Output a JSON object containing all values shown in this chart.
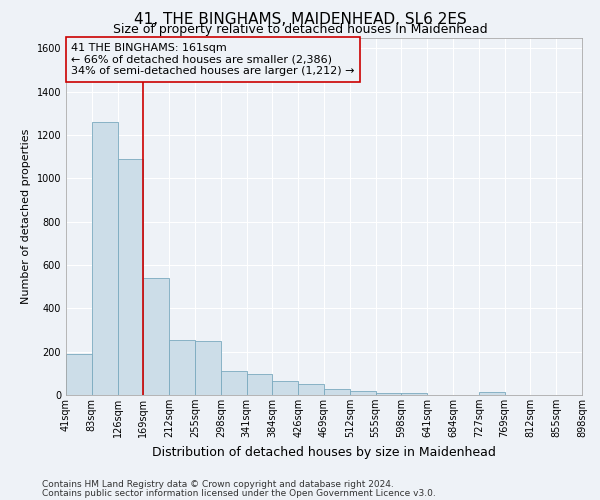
{
  "title": "41, THE BINGHAMS, MAIDENHEAD, SL6 2ES",
  "subtitle": "Size of property relative to detached houses in Maidenhead",
  "xlabel": "Distribution of detached houses by size in Maidenhead",
  "ylabel": "Number of detached properties",
  "footnote1": "Contains HM Land Registry data © Crown copyright and database right 2024.",
  "footnote2": "Contains public sector information licensed under the Open Government Licence v3.0.",
  "annotation_line1": "41 THE BINGHAMS: 161sqm",
  "annotation_line2": "← 66% of detached houses are smaller (2,386)",
  "annotation_line3": "34% of semi-detached houses are larger (1,212) →",
  "bar_values": [
    190,
    1260,
    1090,
    540,
    255,
    250,
    110,
    95,
    65,
    50,
    30,
    20,
    10,
    10,
    0,
    0,
    15,
    0,
    0,
    0
  ],
  "bin_labels": [
    "41sqm",
    "83sqm",
    "126sqm",
    "169sqm",
    "212sqm",
    "255sqm",
    "298sqm",
    "341sqm",
    "384sqm",
    "426sqm",
    "469sqm",
    "512sqm",
    "555sqm",
    "598sqm",
    "641sqm",
    "684sqm",
    "727sqm",
    "769sqm",
    "812sqm",
    "855sqm",
    "898sqm"
  ],
  "bar_color": "#ccdde8",
  "bar_edge_color": "#7aaabf",
  "vline_color": "#cc0000",
  "vline_x": 2.5,
  "ylim": [
    0,
    1650
  ],
  "yticks": [
    0,
    200,
    400,
    600,
    800,
    1000,
    1200,
    1400,
    1600
  ],
  "bg_color": "#eef2f7",
  "grid_color": "#ffffff",
  "title_fontsize": 11,
  "subtitle_fontsize": 9,
  "xlabel_fontsize": 9,
  "ylabel_fontsize": 8,
  "annotation_fontsize": 8,
  "footnote_fontsize": 6.5,
  "tick_fontsize": 7
}
